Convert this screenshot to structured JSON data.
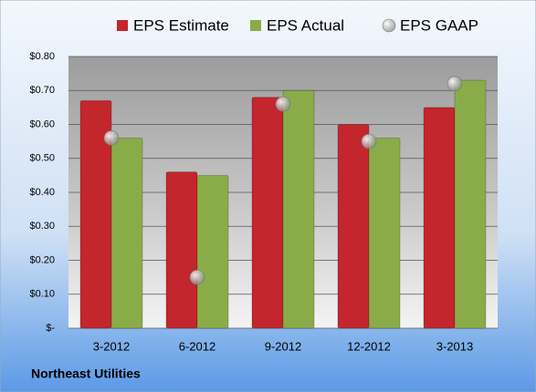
{
  "chart_data": {
    "type": "bar",
    "footer": "Northeast Utilities",
    "categories": [
      "3-2012",
      "6-2012",
      "9-2012",
      "12-2012",
      "3-2013"
    ],
    "series": [
      {
        "name": "EPS Estimate",
        "type": "bar",
        "color": "#c3262c",
        "values": [
          0.67,
          0.46,
          0.68,
          0.6,
          0.65
        ]
      },
      {
        "name": "EPS Actual",
        "type": "bar",
        "color": "#8aac48",
        "values": [
          0.56,
          0.45,
          0.7,
          0.56,
          0.73
        ]
      },
      {
        "name": "EPS GAAP",
        "type": "scatter",
        "color": "#b8b8b8",
        "values": [
          0.56,
          0.15,
          0.66,
          0.55,
          0.72
        ]
      }
    ],
    "ylim": [
      0,
      0.8
    ],
    "yticks": [
      {
        "value": 0,
        "label": "$-"
      },
      {
        "value": 0.1,
        "label": "$0.10"
      },
      {
        "value": 0.2,
        "label": "$0.20"
      },
      {
        "value": 0.3,
        "label": "$0.30"
      },
      {
        "value": 0.4,
        "label": "$0.40"
      },
      {
        "value": 0.5,
        "label": "$0.50"
      },
      {
        "value": 0.6,
        "label": "$0.60"
      },
      {
        "value": 0.7,
        "label": "$0.70"
      },
      {
        "value": 0.8,
        "label": "$0.80"
      }
    ],
    "grid": true
  }
}
